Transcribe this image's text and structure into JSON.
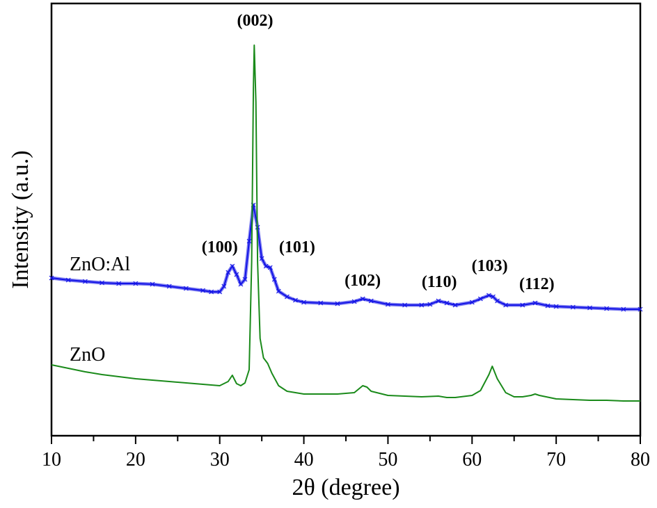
{
  "chart_data": {
    "type": "line",
    "title": "",
    "xlabel": "2θ (degree)",
    "ylabel": "Intensity (a.u.)",
    "xlim": [
      10,
      80
    ],
    "ylim": [
      0,
      622
    ],
    "xticks": [
      "10",
      "20",
      "30",
      "40",
      "50",
      "60",
      "70",
      "80"
    ],
    "grid": false,
    "legend": "none",
    "series": [
      {
        "name": "ZnO:Al",
        "label": "ZnO:Al",
        "color": "#1414e6",
        "marker": "x",
        "x": [
          10,
          12,
          14,
          16,
          18,
          20,
          22,
          24,
          26,
          28,
          29,
          30,
          30.5,
          31,
          31.5,
          32,
          32.5,
          33,
          33.5,
          34,
          34.5,
          35,
          35.5,
          36,
          36.5,
          37,
          38,
          39,
          40,
          42,
          44,
          46,
          47,
          48,
          50,
          52,
          54,
          55,
          56,
          57,
          58,
          60,
          61,
          62,
          62.5,
          63,
          64,
          66,
          67.5,
          69,
          70,
          72,
          74,
          76,
          78,
          80
        ],
        "y": [
          227,
          224,
          222,
          220,
          219,
          219,
          218,
          215,
          212,
          209,
          207,
          207,
          215,
          235,
          244,
          232,
          218,
          225,
          280,
          332,
          300,
          255,
          244,
          242,
          225,
          208,
          200,
          195,
          192,
          191,
          190,
          193,
          197,
          194,
          189,
          188,
          188,
          189,
          194,
          191,
          188,
          192,
          197,
          202,
          200,
          194,
          188,
          188,
          191,
          187,
          186,
          185,
          184,
          183,
          182,
          182
        ]
      },
      {
        "name": "ZnO",
        "label": "ZnO",
        "color": "#1a8a1a",
        "marker": "none",
        "x": [
          10,
          12,
          14,
          16,
          18,
          20,
          22,
          24,
          26,
          28,
          30,
          31,
          31.5,
          32,
          32.5,
          33,
          33.5,
          33.8,
          34.0,
          34.1,
          34.3,
          34.5,
          34.8,
          35.2,
          35.7,
          36.2,
          37,
          38,
          40,
          42,
          44,
          46,
          47,
          47.5,
          48,
          50,
          52,
          54,
          56,
          57,
          58,
          60,
          61,
          62,
          62.4,
          63,
          64,
          65,
          66,
          67,
          67.5,
          68,
          70,
          72,
          74,
          76,
          78,
          80
        ],
        "y": [
          102,
          97,
          92,
          88,
          85,
          82,
          80,
          78,
          76,
          74,
          72,
          78,
          87,
          75,
          72,
          76,
          95,
          250,
          500,
          562,
          480,
          250,
          140,
          112,
          104,
          90,
          72,
          64,
          60,
          60,
          60,
          62,
          72,
          70,
          64,
          58,
          57,
          56,
          57,
          55,
          55,
          58,
          65,
          88,
          100,
          82,
          62,
          56,
          56,
          58,
          60,
          58,
          53,
          52,
          51,
          51,
          50,
          50
        ]
      }
    ],
    "annotations": [
      {
        "text": "(002)",
        "x": 34.2,
        "y": 590
      },
      {
        "text": "(100)",
        "x": 30.0,
        "y": 264
      },
      {
        "text": "(101)",
        "x": 39.2,
        "y": 264
      },
      {
        "text": "(102)",
        "x": 47.0,
        "y": 216
      },
      {
        "text": "(110)",
        "x": 56.1,
        "y": 214
      },
      {
        "text": "(103)",
        "x": 62.1,
        "y": 237
      },
      {
        "text": "(112)",
        "x": 67.7,
        "y": 211
      }
    ]
  }
}
